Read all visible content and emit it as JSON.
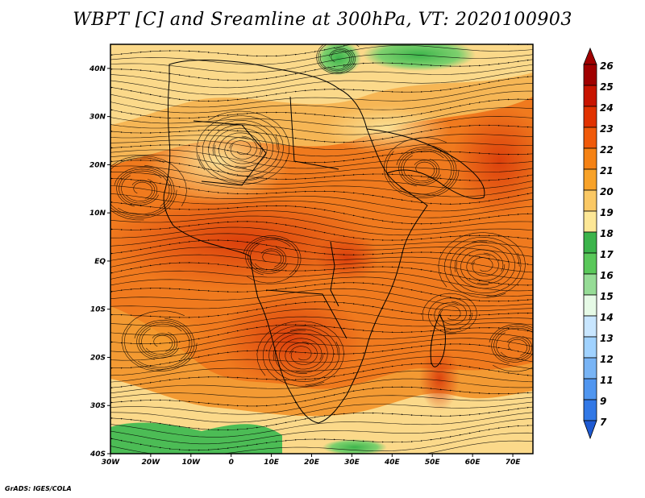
{
  "title": "WBPT [C] and Sreamline at 300hPa, VT: 2020100903",
  "credit": "GrADS: IGES/COLA",
  "map": {
    "lon_range": [
      -30,
      75
    ],
    "lat_range": [
      -40,
      45
    ],
    "lat_ticks": [
      {
        "value": 40,
        "label": "40N"
      },
      {
        "value": 30,
        "label": "30N"
      },
      {
        "value": 20,
        "label": "20N"
      },
      {
        "value": 10,
        "label": "10N"
      },
      {
        "value": 0,
        "label": "EQ"
      },
      {
        "value": -10,
        "label": "10S"
      },
      {
        "value": -20,
        "label": "20S"
      },
      {
        "value": -30,
        "label": "30S"
      },
      {
        "value": -40,
        "label": "40S"
      }
    ],
    "lon_ticks": [
      {
        "value": -30,
        "label": "30W"
      },
      {
        "value": -20,
        "label": "20W"
      },
      {
        "value": -10,
        "label": "10W"
      },
      {
        "value": 0,
        "label": "0"
      },
      {
        "value": 10,
        "label": "10E"
      },
      {
        "value": 20,
        "label": "20E"
      },
      {
        "value": 30,
        "label": "30E"
      },
      {
        "value": 40,
        "label": "40E"
      },
      {
        "value": 50,
        "label": "50E"
      },
      {
        "value": 60,
        "label": "60E"
      },
      {
        "value": 70,
        "label": "70E"
      }
    ]
  },
  "colorbar": {
    "levels": [
      "26",
      "25",
      "24",
      "23",
      "22",
      "21",
      "20",
      "19",
      "18",
      "17",
      "16",
      "15",
      "14",
      "13",
      "12",
      "11",
      "9",
      "7"
    ],
    "colors": [
      "#a00000",
      "#c81400",
      "#e13200",
      "#f05a0a",
      "#f58214",
      "#f8a228",
      "#fac864",
      "#fde796",
      "#3cb44b",
      "#5ac85a",
      "#96dc96",
      "#e6fae6",
      "#c8e6ff",
      "#a0d2ff",
      "#78b4f5",
      "#5096f0",
      "#3278e6",
      "#1e5ad2"
    ]
  }
}
